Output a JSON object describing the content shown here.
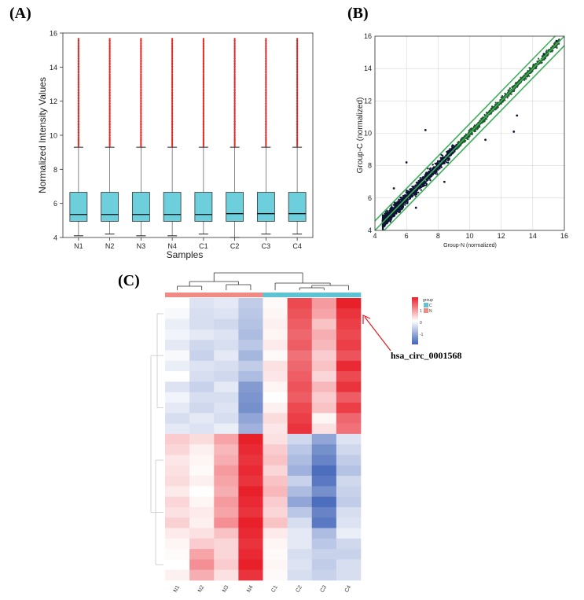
{
  "panel_labels": {
    "a": "(A)",
    "b": "(B)",
    "c": "(C)"
  },
  "colors": {
    "box_fill": "#6ccfdb",
    "outlier": "#e0241f",
    "scatter_point": "#0c1535",
    "fit_line": "#3fae5a",
    "group_C": "#5ec4d4",
    "group_N": "#ef8a84",
    "heat_high": "#e8202a",
    "heat_mid": "#ffffff",
    "heat_low": "#3f63b8",
    "arrow": "#e01b24"
  },
  "chart_data": [
    {
      "id": "A",
      "type": "box",
      "title": "",
      "xlabel": "Samples",
      "ylabel": "Normalized Intensity Values",
      "ylim": [
        4,
        16
      ],
      "yticks": [
        4,
        6,
        8,
        10,
        12,
        14,
        16
      ],
      "categories": [
        "N1",
        "N2",
        "N3",
        "N4",
        "C1",
        "C2",
        "C3",
        "C4"
      ],
      "boxes": [
        {
          "name": "N1",
          "min": 4.1,
          "q1": 4.95,
          "median": 5.35,
          "q3": 6.65,
          "max": 9.3,
          "outliers_max": 15.7
        },
        {
          "name": "N2",
          "min": 4.2,
          "q1": 4.95,
          "median": 5.35,
          "q3": 6.65,
          "max": 9.3,
          "outliers_max": 15.7
        },
        {
          "name": "N3",
          "min": 4.1,
          "q1": 4.95,
          "median": 5.35,
          "q3": 6.65,
          "max": 9.3,
          "outliers_max": 15.7
        },
        {
          "name": "N4",
          "min": 4.1,
          "q1": 4.95,
          "median": 5.35,
          "q3": 6.65,
          "max": 9.3,
          "outliers_max": 15.7
        },
        {
          "name": "C1",
          "min": 4.2,
          "q1": 4.95,
          "median": 5.35,
          "q3": 6.65,
          "max": 9.3,
          "outliers_max": 15.7
        },
        {
          "name": "C2",
          "min": 4.0,
          "q1": 4.95,
          "median": 5.4,
          "q3": 6.65,
          "max": 9.3,
          "outliers_max": 15.7
        },
        {
          "name": "C3",
          "min": 4.2,
          "q1": 4.95,
          "median": 5.4,
          "q3": 6.65,
          "max": 9.3,
          "outliers_max": 15.7
        },
        {
          "name": "C4",
          "min": 4.2,
          "q1": 4.95,
          "median": 5.4,
          "q3": 6.65,
          "max": 9.3,
          "outliers_max": 15.7
        }
      ]
    },
    {
      "id": "B",
      "type": "scatter",
      "title": "",
      "xlabel": "Group-N (normalized)",
      "ylabel": "Group-C (normalized)",
      "xlim": [
        4,
        16
      ],
      "ylim": [
        4,
        16
      ],
      "xticks": [
        4,
        6,
        8,
        10,
        12,
        14,
        16
      ],
      "yticks": [
        4,
        6,
        8,
        10,
        12,
        14,
        16
      ],
      "grid": true,
      "fold_lines": [
        {
          "name": "y = x",
          "offset": 0
        },
        {
          "name": "up 1.5-fold",
          "offset": 0.585
        },
        {
          "name": "down 1.5-fold",
          "offset": -0.585
        }
      ],
      "point_range": [
        4.5,
        15.7
      ],
      "n_points": 2600
    },
    {
      "id": "C",
      "type": "heatmap",
      "columns": [
        "N1",
        "N2",
        "N3",
        "N4",
        "C1",
        "C2",
        "C3",
        "C4"
      ],
      "column_groups": [
        "N",
        "N",
        "N",
        "N",
        "C",
        "C",
        "C",
        "C"
      ],
      "scale_ticks": [
        "1",
        "0",
        "-1"
      ],
      "legend_title": "group",
      "legend_groups": [
        "C",
        "N"
      ],
      "annotation": "hsa_circ_0001568",
      "values": [
        [
          0.0,
          -0.25,
          -0.2,
          -0.45,
          0.05,
          1.8,
          1.0,
          2.2
        ],
        [
          -0.05,
          -0.3,
          -0.25,
          -0.5,
          0.1,
          1.7,
          0.9,
          2.0
        ],
        [
          -0.15,
          -0.3,
          -0.35,
          -0.55,
          0.15,
          1.6,
          0.6,
          1.9
        ],
        [
          -0.1,
          -0.2,
          -0.25,
          -0.6,
          0.1,
          1.5,
          0.8,
          1.8
        ],
        [
          -0.2,
          -0.35,
          -0.3,
          -0.5,
          0.2,
          1.6,
          0.7,
          1.9
        ],
        [
          -0.05,
          -0.4,
          -0.2,
          -0.65,
          0.05,
          1.4,
          0.5,
          1.7
        ],
        [
          -0.15,
          -0.25,
          -0.3,
          -0.45,
          0.3,
          1.5,
          0.6,
          2.1
        ],
        [
          0.0,
          -0.3,
          -0.35,
          -0.6,
          0.25,
          1.6,
          0.4,
          1.8
        ],
        [
          -0.25,
          -0.4,
          -0.2,
          -0.9,
          0.1,
          1.7,
          0.7,
          2.0
        ],
        [
          -0.1,
          -0.3,
          -0.3,
          -0.95,
          0.0,
          1.6,
          0.5,
          1.6
        ],
        [
          -0.2,
          -0.35,
          -0.25,
          -1.0,
          0.15,
          1.8,
          0.6,
          1.9
        ],
        [
          -0.3,
          -0.2,
          -0.3,
          -0.8,
          0.35,
          1.9,
          0.1,
          1.5
        ],
        [
          -0.2,
          -0.25,
          -0.15,
          -0.7,
          0.25,
          2.0,
          0.3,
          1.4
        ],
        [
          0.5,
          0.35,
          0.9,
          2.2,
          0.3,
          -0.35,
          -0.8,
          -0.25
        ],
        [
          0.4,
          0.15,
          0.7,
          2.1,
          0.5,
          -0.5,
          -1.0,
          -0.35
        ],
        [
          0.25,
          0.1,
          0.8,
          2.0,
          0.6,
          -0.6,
          -1.1,
          -0.45
        ],
        [
          0.3,
          0.05,
          1.0,
          2.1,
          0.4,
          -0.7,
          -1.3,
          -0.55
        ],
        [
          0.35,
          0.15,
          0.9,
          2.0,
          0.6,
          -0.4,
          -1.2,
          -0.35
        ],
        [
          0.2,
          0.0,
          0.8,
          2.2,
          0.7,
          -0.6,
          -1.0,
          -0.4
        ],
        [
          0.4,
          0.1,
          1.0,
          2.1,
          0.5,
          -0.8,
          -1.3,
          -0.45
        ],
        [
          0.3,
          0.2,
          0.9,
          2.0,
          0.4,
          -0.5,
          -1.1,
          -0.3
        ],
        [
          0.45,
          0.15,
          1.1,
          2.2,
          0.6,
          -0.3,
          -1.2,
          -0.25
        ],
        [
          0.2,
          0.3,
          0.6,
          2.1,
          0.2,
          -0.2,
          -0.6,
          -0.15
        ],
        [
          0.1,
          0.5,
          0.4,
          2.0,
          0.1,
          -0.2,
          -0.5,
          -0.35
        ],
        [
          0.05,
          0.9,
          0.4,
          2.1,
          0.05,
          -0.3,
          -0.4,
          -0.4
        ],
        [
          0.0,
          1.1,
          0.5,
          2.2,
          0.1,
          -0.25,
          -0.45,
          -0.3
        ],
        [
          0.15,
          0.8,
          0.3,
          2.0,
          0.05,
          -0.3,
          -0.4,
          -0.3
        ]
      ]
    }
  ]
}
